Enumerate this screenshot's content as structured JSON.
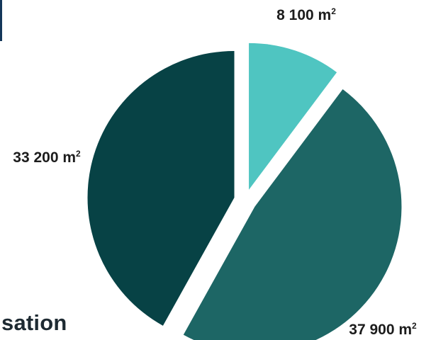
{
  "page": {
    "partial_heading": "sation"
  },
  "chart_data": {
    "type": "pie",
    "unit": "m²",
    "start_angle_deg": 0,
    "direction": "clockwise",
    "exploded": true,
    "slices": [
      {
        "value": 8100,
        "label": "8 100 m",
        "label_sup": "2",
        "color": "#4fc5c1"
      },
      {
        "value": 37900,
        "label": "37 900 m",
        "label_sup": "2",
        "color": "#1d6665"
      },
      {
        "value": 33200,
        "label": "33 200 m",
        "label_sup": "2",
        "color": "#074245"
      }
    ]
  }
}
